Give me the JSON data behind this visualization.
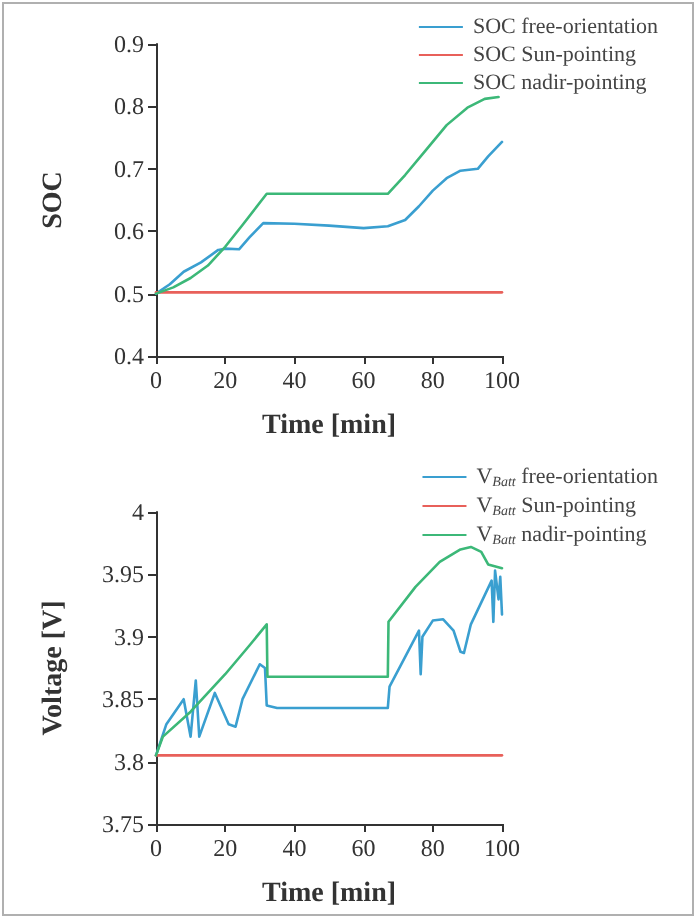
{
  "chart_data": [
    {
      "type": "line",
      "xlabel": "Time [min]",
      "ylabel": "SOC",
      "xlim": [
        0,
        100
      ],
      "xticks": [
        0,
        20,
        40,
        60,
        80,
        100
      ],
      "ylim": [
        0.4,
        0.9
      ],
      "yticks": [
        0.4,
        0.5,
        0.6,
        0.7,
        0.8,
        0.9
      ],
      "grid": false,
      "legend": "top right",
      "marker": "none",
      "line_style": "solid",
      "series": [
        {
          "name": "SOC free-orientation",
          "color": "#3a9fd0",
          "x": [
            0,
            4,
            8,
            13,
            18,
            20,
            24,
            27,
            31,
            40,
            50,
            60,
            67,
            72,
            76,
            80,
            84,
            88,
            93,
            96,
            100
          ],
          "values": [
            0.5,
            0.515,
            0.535,
            0.55,
            0.57,
            0.572,
            0.571,
            0.59,
            0.613,
            0.612,
            0.609,
            0.605,
            0.608,
            0.618,
            0.64,
            0.665,
            0.685,
            0.697,
            0.7,
            0.72,
            0.743
          ]
        },
        {
          "name": "SOC Sun-pointing",
          "color": "#e8605a",
          "x": [
            0,
            100
          ],
          "values": [
            0.502,
            0.502
          ]
        },
        {
          "name": "SOC nadir-pointing",
          "color": "#3cb878",
          "x": [
            0,
            5,
            10,
            15,
            20,
            25,
            32,
            67,
            72,
            78,
            84,
            90,
            95,
            99
          ],
          "values": [
            0.5,
            0.51,
            0.525,
            0.545,
            0.575,
            0.61,
            0.66,
            0.66,
            0.69,
            0.73,
            0.77,
            0.798,
            0.812,
            0.815
          ]
        }
      ]
    },
    {
      "type": "line",
      "xlabel": "Time [min]",
      "ylabel": "Voltage [V]",
      "xlim": [
        0,
        100
      ],
      "xticks": [
        0,
        20,
        40,
        60,
        80,
        100
      ],
      "ylim": [
        3.75,
        4
      ],
      "yticks": [
        3.75,
        3.8,
        3.85,
        3.9,
        3.95,
        4
      ],
      "grid": false,
      "legend": "top right",
      "marker": "none",
      "line_style": "solid",
      "series": [
        {
          "name": "V$_{Batt}$ free-orientation",
          "color": "#3a9fd0",
          "x": [
            0,
            3,
            8,
            10,
            11.5,
            12.5,
            17,
            21,
            23,
            25,
            30,
            31.5,
            32,
            35,
            67,
            67.5,
            76,
            76.5,
            77,
            80,
            83,
            86,
            88,
            89,
            91,
            97,
            97.5,
            98,
            99,
            99.5,
            100
          ],
          "values": [
            3.805,
            3.83,
            3.85,
            3.82,
            3.865,
            3.82,
            3.855,
            3.83,
            3.828,
            3.85,
            3.878,
            3.875,
            3.845,
            3.843,
            3.843,
            3.86,
            3.905,
            3.87,
            3.9,
            3.913,
            3.914,
            3.905,
            3.888,
            3.887,
            3.91,
            3.945,
            3.912,
            3.953,
            3.93,
            3.948,
            3.918
          ]
        },
        {
          "name": "V$_{Batt}$ Sun-pointing",
          "color": "#e8605a",
          "x": [
            0,
            100
          ],
          "values": [
            3.805,
            3.805
          ]
        },
        {
          "name": "V$_{Batt}$ nadir-pointing",
          "color": "#3cb878",
          "x": [
            0,
            2,
            10,
            20,
            27,
            32,
            32.2,
            67,
            67.2,
            75,
            82,
            88,
            91,
            94,
            96,
            100
          ],
          "values": [
            3.805,
            3.82,
            3.84,
            3.87,
            3.893,
            3.91,
            3.868,
            3.868,
            3.912,
            3.94,
            3.96,
            3.97,
            3.972,
            3.968,
            3.958,
            3.955
          ]
        }
      ]
    }
  ]
}
